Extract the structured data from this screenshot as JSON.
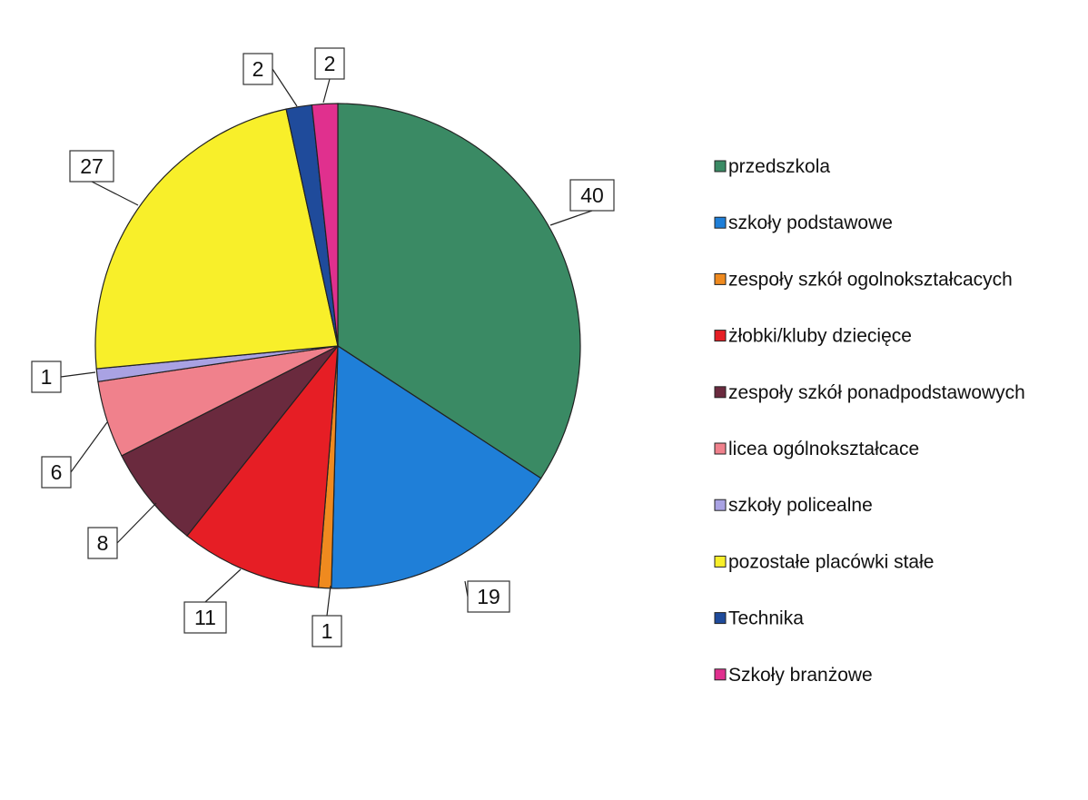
{
  "chart_data": {
    "type": "pie",
    "title": "",
    "legend_position": "right",
    "slices": [
      {
        "name": "przedszkola",
        "value": 40,
        "color": "#3a8a64"
      },
      {
        "name": "szkoły podstawowe",
        "value": 19,
        "color": "#1f7fd8"
      },
      {
        "name": "zespoły szkół ogolnokształcacych",
        "value": 1,
        "color": "#ef8a1f"
      },
      {
        "name": "żłobki/kluby dziecięce",
        "value": 11,
        "color": "#e61e25"
      },
      {
        "name": "zespoły szkół ponadpodstawowych",
        "value": 8,
        "color": "#6a2a3e"
      },
      {
        "name": "licea ogólnokształcace",
        "value": 6,
        "color": "#f0818c"
      },
      {
        "name": "szkoły policealne",
        "value": 1,
        "color": "#a9a2e3"
      },
      {
        "name": "pozostałe placówki stałe",
        "value": 27,
        "color": "#f8ef2a"
      },
      {
        "name": "Technika",
        "value": 2,
        "color": "#1f4b9b"
      },
      {
        "name": "Szkoły branżowe",
        "value": 2,
        "color": "#e0308e"
      }
    ]
  }
}
